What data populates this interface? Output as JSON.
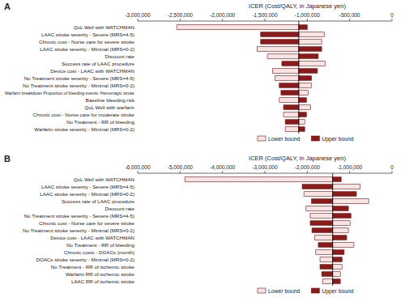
{
  "chart_data": [
    {
      "type": "bar",
      "orientation": "horizontal",
      "title": "A",
      "xlabel": "ICER (Cost/QALY, in Japanese yen)",
      "categories": [
        "QoL Well with WATCHMAN",
        "LAAC stroke severity - Severe (MRS=4-5)",
        "Chronic cost - Nurse care for severe stroke",
        "LAAC stroke severity - Minimal (MRS=0-2)",
        "Discount rate",
        "Success rate of LAAC procedure",
        "Device cost - LAAC with WATCHMAN",
        "No Treatment stroke severity - Severe (MRS=4-5)",
        "No Treatment stroke severity - Minimal (MRS=0-2)",
        "Warfarin breakdown Proportion of bleeding events: Hemorragic stroke",
        "Baseline bleeding risk",
        "QoL Well with warfarin",
        "Chronic cost - Nurse care for moderate stroke",
        "No Treatment - RR of bleeding",
        "Warfarin stroke severity - Minimal (MRS=0-2)"
      ],
      "base": -1100000,
      "series": [
        {
          "name": "Lower bound",
          "color": "#f7e4e4",
          "values": [
            -2540000,
            -800000,
            -830000,
            -1590000,
            -1470000,
            -790000,
            -1410000,
            -1380000,
            -950000,
            -990000,
            -1330000,
            -960000,
            -1280000,
            -1030000,
            -1260000
          ]
        },
        {
          "name": "Upper bound",
          "color": "#8b1a1a",
          "values": [
            -1000000,
            -1550000,
            -1550000,
            -830000,
            -870000,
            -1300000,
            -880000,
            -950000,
            -1330000,
            -1310000,
            -1010000,
            -1280000,
            -1010000,
            -1260000,
            -1030000
          ]
        }
      ],
      "xlim": [
        -3000000,
        0
      ],
      "xticks": [
        {
          "value": -3000000,
          "label": "-3,000,000"
        },
        {
          "value": -2500000,
          "label": "-2,500,000"
        },
        {
          "value": -2000000,
          "label": "-2,000,000"
        },
        {
          "value": -1500000,
          "label": "-1,500,000"
        },
        {
          "value": -1000000,
          "label": "-1,000,000"
        },
        {
          "value": -500000,
          "label": "-500,000"
        },
        0
      ],
      "grid": false,
      "legend": "bottom"
    },
    {
      "type": "bar",
      "orientation": "horizontal",
      "title": "B",
      "xlabel": "ICER (Cost/QALY, in Japanese yen)",
      "categories": [
        "QoL Well with WATCHMAN",
        "LAAC stroke severity - Severe (MRS=4-5)",
        "LAAC stroke severity - Minimal (MRS=0-2)",
        "Success rate of LAAC procedure",
        "Discount rate",
        "No Treatment stroke severity - Severe (MRS=4-5)",
        "Chronic cost - Nurse care for severe stroke",
        "No Treatment stroke severity - Minimal (MRS=0-2)",
        "Device cost - LAAC with WATCHMAN",
        "No Treatment - RR of bleeding",
        "Chronic costs - DOACs (month)",
        "DOACs stroke severity - Minimal (MRS=0-2)",
        "No Treatment - RR of ischemic stroke",
        "Warfarin RR of ischemic stroke",
        "LAAC RR of ischemic stroke"
      ],
      "base": -1400000,
      "series": [
        {
          "name": "Lower bound",
          "color": "#f7e4e4",
          "values": [
            -4890000,
            -750000,
            -2080000,
            -550000,
            -2030000,
            -1930000,
            -990000,
            -1030000,
            -1830000,
            -900000,
            -1800000,
            -1700000,
            -1180000,
            -1220000,
            -1640000
          ]
        },
        {
          "name": "Upper bound",
          "color": "#8b1a1a",
          "values": [
            -1200000,
            -2120000,
            -840000,
            -1900000,
            -1030000,
            -970000,
            -1930000,
            -1890000,
            -1070000,
            -1740000,
            -1130000,
            -1180000,
            -1700000,
            -1660000,
            -1220000
          ]
        }
      ],
      "xlim": [
        -6000000,
        0
      ],
      "xticks": [
        {
          "value": -6000000,
          "label": "-6,000,000"
        },
        {
          "value": -5000000,
          "label": "-5,000,000"
        },
        {
          "value": -4000000,
          "label": "-4,000,000"
        },
        {
          "value": -3000000,
          "label": "-3,000,000"
        },
        {
          "value": -2000000,
          "label": "-2,000,000"
        },
        {
          "value": -1000000,
          "label": "-1,000,000"
        },
        0
      ],
      "grid": false,
      "legend": "bottom"
    }
  ]
}
